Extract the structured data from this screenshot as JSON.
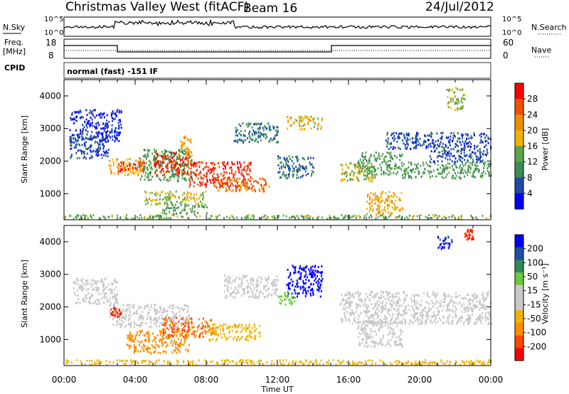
{
  "header": {
    "title": "Christmas Valley West (fitACF)",
    "beam": "Beam 16",
    "date": "24/Jul/2012"
  },
  "top_panels": {
    "nsky_label": "N.Sky",
    "nsky_ticks": [
      "10^5",
      "10^0"
    ],
    "nsearch_label": "N.Search",
    "nsearch_ticks": [
      "10^5",
      "10^0"
    ],
    "freq_label_1": "Freq.",
    "freq_label_2": "[MHz]",
    "freq_ticks": [
      "18",
      "8"
    ],
    "nave_label": "Nave",
    "nave_ticks": [
      "60",
      "0"
    ],
    "cpid_label": "CPID",
    "cpid_value": "normal (fast) -151 IF"
  },
  "colors": {
    "power": [
      "#0000ff",
      "#1f4aa8",
      "#3c8c5a",
      "#5aa646",
      "#f0b400",
      "#f08c00",
      "#f05000",
      "#ff0000"
    ],
    "velocity": [
      "#ff0000",
      "#ff4600",
      "#ff8c00",
      "#f0b400",
      "#c8c8c8",
      "#c8c8c8",
      "#6cc83c",
      "#2e8b57",
      "#1e50a0",
      "#0000ff"
    ]
  },
  "chart_data": [
    {
      "type": "heatmap",
      "quantity": "Power",
      "xlabel": "",
      "ylabel": "Slant Range [km]",
      "xlim": [
        0,
        24
      ],
      "ylim": [
        200,
        4500
      ],
      "x_ticks": [
        "00:00",
        "04:00",
        "08:00",
        "12:00",
        "16:00",
        "20:00",
        "00:00"
      ],
      "y_ticks": [
        1000,
        2000,
        3000,
        4000
      ],
      "colorbar_label": "Power [dB]",
      "colorbar_ticks": [
        "4",
        "8",
        "12",
        "16",
        "20",
        "24",
        "28"
      ],
      "colorbar_range": [
        0,
        32
      ],
      "regions": [
        {
          "x": [
            0.3,
            3.2
          ],
          "y": [
            2600,
            3600
          ],
          "level": 4
        },
        {
          "x": [
            0.3,
            2.5
          ],
          "y": [
            2100,
            2800
          ],
          "level": 6
        },
        {
          "x": [
            2.5,
            4.5
          ],
          "y": [
            1600,
            2100
          ],
          "level": 20
        },
        {
          "x": [
            3.0,
            4.5
          ],
          "y": [
            1700,
            2000
          ],
          "level": 28
        },
        {
          "x": [
            4.2,
            7.2
          ],
          "y": [
            1400,
            2400
          ],
          "level": 12
        },
        {
          "x": [
            5.0,
            7.0
          ],
          "y": [
            1600,
            2300
          ],
          "level": 28
        },
        {
          "x": [
            6.5,
            7.2
          ],
          "y": [
            2200,
            2800
          ],
          "level": 20
        },
        {
          "x": [
            7.0,
            10.5
          ],
          "y": [
            1200,
            2000
          ],
          "level": 28
        },
        {
          "x": [
            8.5,
            11.5
          ],
          "y": [
            1100,
            1500
          ],
          "level": 24
        },
        {
          "x": [
            4.5,
            8.0
          ],
          "y": [
            700,
            1100
          ],
          "level": 16
        },
        {
          "x": [
            5.5,
            8.0
          ],
          "y": [
            400,
            700
          ],
          "level": 12
        },
        {
          "x": [
            9.5,
            12.0
          ],
          "y": [
            2600,
            3200
          ],
          "level": 8
        },
        {
          "x": [
            12.5,
            14.5
          ],
          "y": [
            3000,
            3400
          ],
          "level": 18
        },
        {
          "x": [
            12.0,
            14.0
          ],
          "y": [
            1500,
            2200
          ],
          "level": 8
        },
        {
          "x": [
            15.5,
            17.5
          ],
          "y": [
            1400,
            2000
          ],
          "level": 16
        },
        {
          "x": [
            16.5,
            19.0
          ],
          "y": [
            1600,
            2300
          ],
          "level": 12
        },
        {
          "x": [
            17.0,
            19.0
          ],
          "y": [
            400,
            1100
          ],
          "level": 20
        },
        {
          "x": [
            18.0,
            24.0
          ],
          "y": [
            2400,
            2900
          ],
          "level": 6
        },
        {
          "x": [
            19.0,
            24.0
          ],
          "y": [
            1500,
            2000
          ],
          "level": 12
        },
        {
          "x": [
            20.5,
            23.8
          ],
          "y": [
            2000,
            2400
          ],
          "level": 6
        },
        {
          "x": [
            21.5,
            22.5
          ],
          "y": [
            3600,
            4300
          ],
          "level": 16
        },
        {
          "x": [
            0.0,
            24.0
          ],
          "y": [
            250,
            380
          ],
          "level": 14
        }
      ]
    },
    {
      "type": "heatmap",
      "quantity": "Velocity",
      "xlabel": "Time UT",
      "ylabel": "Slant Range [km]",
      "xlim": [
        0,
        24
      ],
      "ylim": [
        200,
        4500
      ],
      "x_ticks": [
        "00:00",
        "04:00",
        "08:00",
        "12:00",
        "16:00",
        "20:00",
        "00:00"
      ],
      "y_ticks": [
        1000,
        2000,
        3000,
        4000
      ],
      "colorbar_label": "Velocity [m s⁻¹]",
      "colorbar_ticks": [
        "-200",
        "-100",
        "-50",
        "-15",
        "15",
        "50",
        "100",
        "200"
      ],
      "colorbar_range": [
        -250,
        250
      ],
      "regions": [
        {
          "x": [
            0.5,
            3.0
          ],
          "y": [
            2100,
            2900
          ],
          "level": 0
        },
        {
          "x": [
            2.5,
            7.0
          ],
          "y": [
            1400,
            2100
          ],
          "level": 0
        },
        {
          "x": [
            2.6,
            3.2
          ],
          "y": [
            1700,
            2000
          ],
          "level": -200
        },
        {
          "x": [
            3.5,
            7.0
          ],
          "y": [
            600,
            1300
          ],
          "level": -70
        },
        {
          "x": [
            5.5,
            8.5
          ],
          "y": [
            1100,
            1700
          ],
          "level": -100
        },
        {
          "x": [
            8.0,
            11.0
          ],
          "y": [
            1000,
            1500
          ],
          "level": -20
        },
        {
          "x": [
            9.0,
            12.0
          ],
          "y": [
            2300,
            3000
          ],
          "level": 0
        },
        {
          "x": [
            12.5,
            14.5
          ],
          "y": [
            2300,
            3300
          ],
          "level": 230
        },
        {
          "x": [
            12.0,
            13.0
          ],
          "y": [
            2100,
            2500
          ],
          "level": 30
        },
        {
          "x": [
            15.5,
            24.0
          ],
          "y": [
            1500,
            2500
          ],
          "level": 0
        },
        {
          "x": [
            16.5,
            19.0
          ],
          "y": [
            800,
            1600
          ],
          "level": 0
        },
        {
          "x": [
            21.0,
            21.8
          ],
          "y": [
            3800,
            4200
          ],
          "level": 200
        },
        {
          "x": [
            22.5,
            23.0
          ],
          "y": [
            4100,
            4400
          ],
          "level": -200
        },
        {
          "x": [
            0.0,
            24.0
          ],
          "y": [
            250,
            400
          ],
          "level": -20
        }
      ]
    }
  ]
}
